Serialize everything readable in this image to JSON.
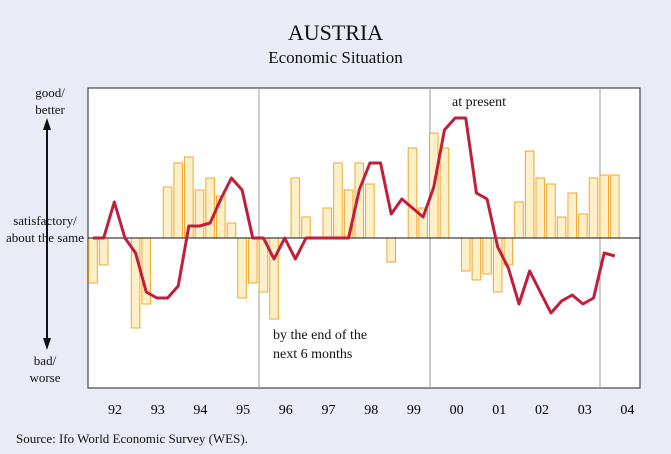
{
  "chart_data": {
    "type": "bar_line",
    "title": "AUSTRIA",
    "subtitle": "Economic Situation",
    "source": "Source: Ifo World Economic Survey (WES).",
    "y_labels": [
      "good/ better",
      "satisfactory/ about the same",
      "bad/ worse"
    ],
    "x_labels": [
      "92",
      "93",
      "94",
      "95",
      "96",
      "97",
      "98",
      "99",
      "00",
      "01",
      "02",
      "03",
      "04"
    ],
    "ylim": [
      -50,
      50
    ],
    "series": [
      {
        "name": "by the end of the next 6 months",
        "kind": "bar",
        "color": "#f0a830",
        "fill": "#fdf0c8",
        "values": [
          -15,
          -9,
          0,
          0,
          -30,
          -22,
          0,
          17,
          25,
          27,
          16,
          20,
          14,
          5,
          -20,
          -15,
          -18,
          -27,
          0,
          20,
          7,
          0,
          10,
          25,
          16,
          25,
          18,
          0,
          -8,
          0,
          30,
          10,
          35,
          30,
          0,
          -11,
          -14,
          -12,
          -18,
          -9,
          12,
          29,
          20,
          18,
          7,
          15,
          8,
          20,
          21,
          21
        ]
      },
      {
        "name": "at present",
        "kind": "line",
        "color": "#c01f3c",
        "values": [
          0,
          0,
          12,
          0,
          -5,
          -18,
          -20,
          -20,
          -16,
          4,
          4,
          5,
          13,
          20,
          16,
          0,
          0,
          -7,
          0,
          -7,
          0,
          0,
          0,
          0,
          0,
          16,
          25,
          25,
          8,
          13,
          10,
          7,
          17,
          36,
          40,
          40,
          15,
          13,
          -3,
          -10,
          -22,
          -11,
          -18,
          -25,
          -21,
          -19,
          -22,
          -20,
          -5,
          -6
        ]
      }
    ]
  }
}
